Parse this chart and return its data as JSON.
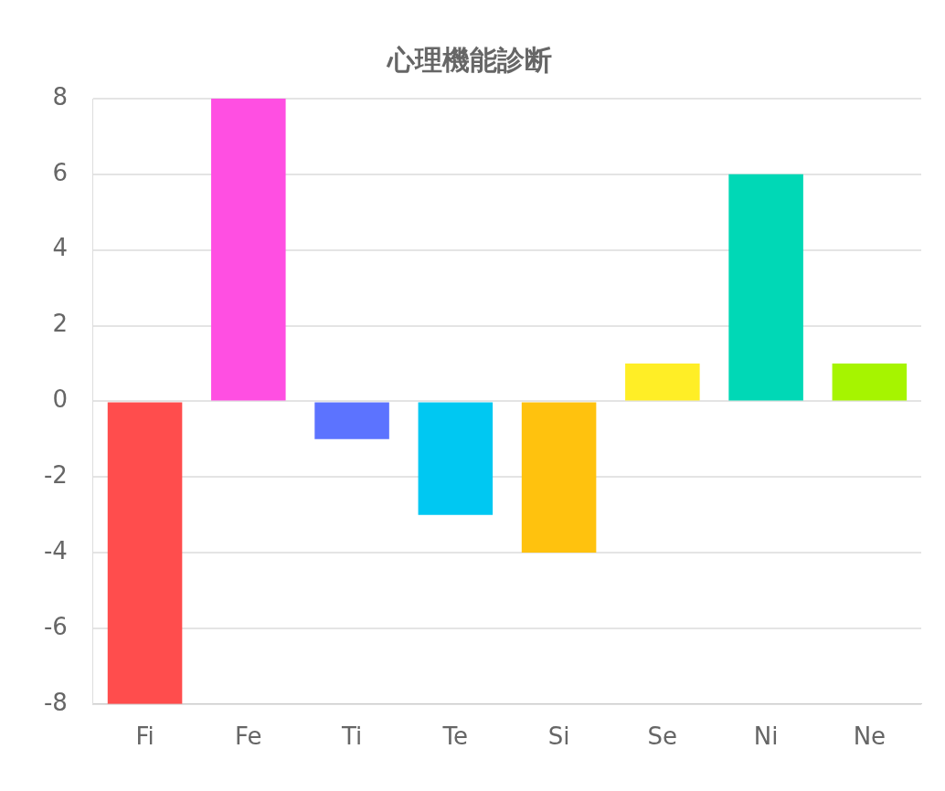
{
  "chart_data": {
    "type": "bar",
    "title": "心理機能診断",
    "categories": [
      "Fi",
      "Fe",
      "Ti",
      "Te",
      "Si",
      "Se",
      "Ni",
      "Ne"
    ],
    "values": [
      -8,
      8,
      -1,
      -3,
      -4,
      1,
      6,
      1
    ],
    "colors": [
      "#ff4d4d",
      "#ff4fe2",
      "#5c73ff",
      "#00c8f2",
      "#ffc20e",
      "#ffee26",
      "#00d8b6",
      "#a6f400"
    ],
    "ylim": [
      -8,
      8
    ],
    "yticks": [
      -8,
      -6,
      -4,
      -2,
      0,
      2,
      4,
      6,
      8
    ],
    "grid": "y"
  }
}
